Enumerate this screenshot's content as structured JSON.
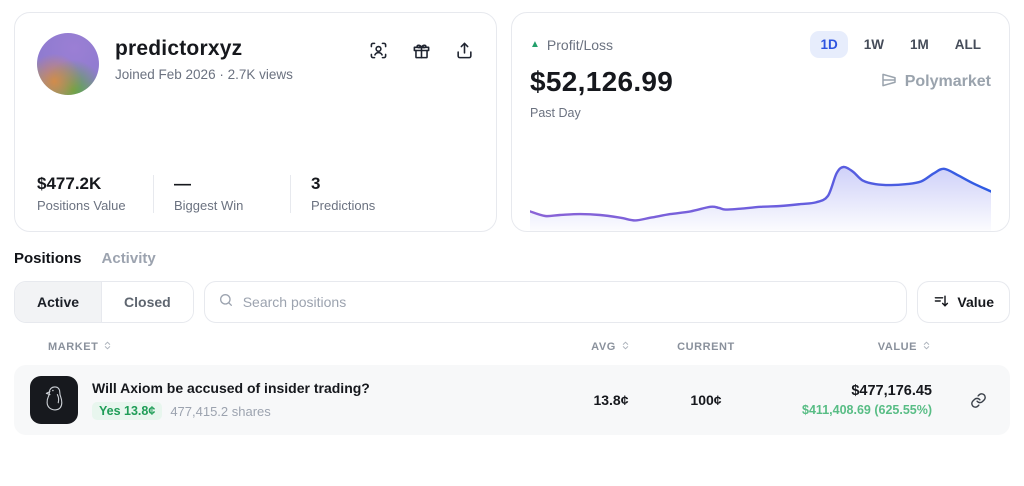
{
  "profile": {
    "username": "predictorxyz",
    "meta": "Joined Feb 2026  ·  2.7K views",
    "actions": [
      {
        "icon": "scan-face-icon"
      },
      {
        "icon": "gift-icon"
      },
      {
        "icon": "share-icon"
      }
    ],
    "stats": [
      {
        "value": "$477.2K",
        "label": "Positions Value"
      },
      {
        "value": "—",
        "label": "Biggest Win"
      },
      {
        "value": "3",
        "label": "Predictions"
      }
    ]
  },
  "pnl": {
    "label": "Profit/Loss",
    "trend_icon": "triangle-up-icon",
    "amount": "$52,126.99",
    "period_label": "Past Day",
    "ranges": [
      {
        "label": "1D",
        "active": true
      },
      {
        "label": "1W",
        "active": false
      },
      {
        "label": "1M",
        "active": false
      },
      {
        "label": "ALL",
        "active": false
      }
    ],
    "brand": "Polymarket"
  },
  "chart_data": {
    "type": "area",
    "title": "Profit/Loss past day sparkline",
    "xlabel": "",
    "ylabel": "",
    "grid": false,
    "legend": false,
    "x_range": [
      0,
      100
    ],
    "y_range": [
      0,
      100
    ],
    "series": [
      {
        "name": "Profit/Loss (1D)",
        "x": [
          0,
          3.3,
          6.5,
          10.9,
          15.2,
          19.6,
          22.8,
          26.1,
          30.4,
          34.8,
          39.1,
          40.9,
          42.4,
          45.7,
          50,
          54.3,
          58.7,
          62,
          64.6,
          66.5,
          68,
          70,
          72.2,
          75,
          78.3,
          81.5,
          84.8,
          87.6,
          89.8,
          92.8,
          96.1,
          100
        ],
        "y": [
          20,
          13.3,
          14.7,
          16,
          14.7,
          10.7,
          6.7,
          10.7,
          16,
          20,
          26.7,
          25.3,
          22.7,
          24,
          26.7,
          28,
          30.7,
          33.3,
          42.7,
          76,
          85.3,
          78.7,
          65.3,
          60,
          58.7,
          60,
          64,
          76,
          82.7,
          73.3,
          61.3,
          49.3
        ]
      }
    ]
  },
  "tabs": [
    {
      "label": "Positions",
      "active": true
    },
    {
      "label": "Activity",
      "active": false
    }
  ],
  "filters": {
    "segments": [
      {
        "label": "Active",
        "active": true
      },
      {
        "label": "Closed",
        "active": false
      }
    ],
    "search_placeholder": "Search positions",
    "sort_button_label": "Value"
  },
  "table": {
    "headers": [
      {
        "label": "MARKET",
        "sortable": true
      },
      {
        "label": "AVG",
        "sortable": true
      },
      {
        "label": "CURRENT",
        "sortable": false
      },
      {
        "label": "VALUE",
        "sortable": true
      }
    ],
    "rows": [
      {
        "market": "Will Axiom be accused of insider trading?",
        "outcome_badge": "Yes 13.8¢",
        "shares": "477,415.2 shares",
        "avg": "13.8¢",
        "current": "100¢",
        "value": "$477,176.45",
        "pnl": "$411,408.69 (625.55%)",
        "thumb_icon": "penguin-illustration"
      }
    ]
  },
  "colors": {
    "accent_blue": "#2e54e0",
    "range_active_bg": "#e7edfc",
    "chart_line_start": "#8a63d6",
    "chart_line_end": "#2d5be3",
    "green_positive": "#22a06b",
    "badge_green_text": "#1f9d57",
    "badge_green_bg": "#e8f6ee",
    "pnl_green": "#58bd85",
    "row_bg": "#f7f8f9",
    "border": "#e7e9ee",
    "muted_text": "#6b7280"
  }
}
